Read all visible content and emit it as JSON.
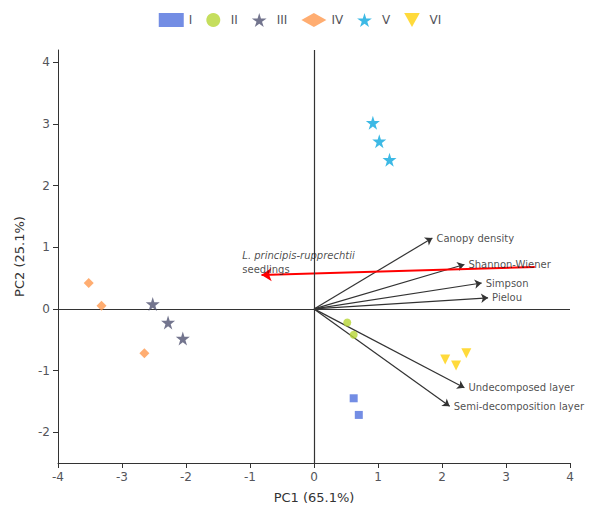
{
  "chart_data": {
    "type": "scatter",
    "xlabel": "PC1 (65.1%)",
    "ylabel": "PC2 (25.1%)",
    "xlim": [
      -4,
      4
    ],
    "ylim": [
      -2.5,
      4.2
    ],
    "xticks": [
      -4,
      -3,
      -2,
      -1,
      0,
      1,
      2,
      3,
      4
    ],
    "yticks": [
      -2,
      -1,
      0,
      1,
      2,
      3,
      4
    ],
    "grid": false,
    "legend": "top",
    "series": [
      {
        "name": "I",
        "marker": "square",
        "x": [
          0.62,
          0.7
        ],
        "values": [
          -1.45,
          -1.72
        ]
      },
      {
        "name": "II",
        "marker": "circle",
        "x": [
          0.52,
          0.62
        ],
        "values": [
          -0.22,
          -0.42
        ]
      },
      {
        "name": "III",
        "marker": "star",
        "x": [
          -2.52,
          -2.28,
          -2.05
        ],
        "values": [
          0.08,
          -0.22,
          -0.48
        ]
      },
      {
        "name": "IV",
        "marker": "diamond",
        "x": [
          -3.52,
          -3.32,
          -2.65
        ],
        "values": [
          0.42,
          0.05,
          -0.72
        ]
      },
      {
        "name": "V",
        "marker": "star",
        "x": [
          0.92,
          1.02,
          1.18
        ],
        "values": [
          3.02,
          2.72,
          2.42
        ]
      },
      {
        "name": "VI",
        "marker": "triangle_down",
        "x": [
          2.05,
          2.22,
          2.38
        ],
        "values": [
          -0.82,
          -0.92,
          -0.72
        ]
      }
    ],
    "arrows": [
      {
        "label": "Canopy density",
        "x": [
          0,
          1.85
        ],
        "y": [
          0,
          1.15
        ]
      },
      {
        "label": "Shannon-Wiener",
        "x": [
          0,
          2.35
        ],
        "y": [
          0,
          0.72
        ]
      },
      {
        "label": "Simpson",
        "x": [
          0,
          2.62
        ],
        "y": [
          0,
          0.42
        ]
      },
      {
        "label": "Pielou",
        "x": [
          0,
          2.72
        ],
        "y": [
          0,
          0.18
        ]
      },
      {
        "label": "Undecomposed layer",
        "x": [
          0,
          2.35
        ],
        "y": [
          0,
          -1.28
        ]
      },
      {
        "label": "Semi-decomposition layer",
        "x": [
          0,
          2.12
        ],
        "y": [
          0,
          -1.58
        ]
      },
      {
        "color": "red",
        "x": [
          3.45,
          -0.82
        ],
        "y": [
          0.68,
          0.55
        ]
      }
    ],
    "annotations": [
      {
        "text": "L. principis-rupprechtii",
        "x": -1.12,
        "y": 0.78
      },
      {
        "text": "seedlings",
        "x": -1.12,
        "y": 0.56
      }
    ]
  }
}
